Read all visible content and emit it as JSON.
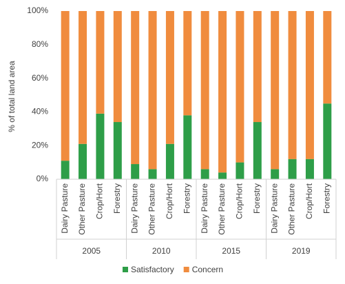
{
  "chart_data": {
    "type": "stacked_bar",
    "y_label": "% of total land area",
    "groups": [
      {
        "name": "2005",
        "categories": [
          "Dairy Pasture",
          "Other Pasture",
          "Crop/Hort",
          "Forestry"
        ]
      },
      {
        "name": "2010",
        "categories": [
          "Dairy Pasture",
          "Other Pasture",
          "Crop/Hort",
          "Forestry"
        ]
      },
      {
        "name": "2015",
        "categories": [
          "Dairy Pasture",
          "Other Pasture",
          "Crop/Hort",
          "Forestry"
        ]
      },
      {
        "name": "2019",
        "categories": [
          "Dairy Pasture",
          "Other Pasture",
          "Crop/Hort",
          "Forestry"
        ]
      }
    ],
    "series": [
      {
        "name": "Satisfactory",
        "color": "#2e9e48",
        "values": [
          11,
          21,
          39,
          34,
          9,
          6,
          21,
          38,
          6,
          4,
          10,
          34,
          6,
          12,
          12,
          45
        ]
      },
      {
        "name": "Concern",
        "color": "#f08c3e",
        "values": [
          89,
          79,
          61,
          66,
          91,
          94,
          79,
          62,
          94,
          96,
          90,
          66,
          94,
          88,
          88,
          55
        ]
      }
    ],
    "ylim": [
      0,
      100
    ],
    "yticks": [
      {
        "value": 0,
        "label": "0%"
      },
      {
        "value": 20,
        "label": "20%"
      },
      {
        "value": 40,
        "label": "40%"
      },
      {
        "value": 60,
        "label": "60%"
      },
      {
        "value": 80,
        "label": "80%"
      },
      {
        "value": 100,
        "label": "100%"
      }
    ],
    "legend": "bottom"
  }
}
